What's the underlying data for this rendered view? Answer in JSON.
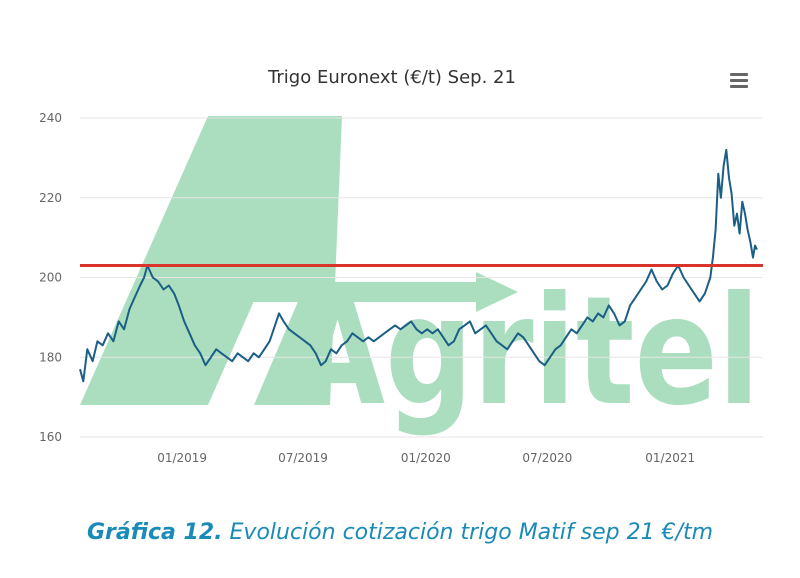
{
  "chart_data": {
    "type": "line",
    "title": "Trigo Euronext (€/t) Sep. 21",
    "x_tick_labels": [
      "01/2019",
      "07/2019",
      "01/2020",
      "07/2020",
      "01/2021"
    ],
    "x_range": [
      "2018-08-01",
      "2021-05-20"
    ],
    "ylim": [
      160,
      240
    ],
    "y_ticks": [
      160,
      180,
      200,
      220,
      240
    ],
    "grid": true,
    "reference_line": {
      "value": 203,
      "color": "#d9342b"
    },
    "series": [
      {
        "color": "#1b5e86",
        "points": [
          [
            "2018-08-01",
            177
          ],
          [
            "2018-08-06",
            174
          ],
          [
            "2018-08-12",
            182
          ],
          [
            "2018-08-20",
            179
          ],
          [
            "2018-08-27",
            184
          ],
          [
            "2018-09-04",
            183
          ],
          [
            "2018-09-12",
            186
          ],
          [
            "2018-09-20",
            184
          ],
          [
            "2018-09-28",
            189
          ],
          [
            "2018-10-06",
            187
          ],
          [
            "2018-10-14",
            192
          ],
          [
            "2018-10-22",
            195
          ],
          [
            "2018-10-30",
            198
          ],
          [
            "2018-11-05",
            200
          ],
          [
            "2018-11-10",
            203
          ],
          [
            "2018-11-18",
            200
          ],
          [
            "2018-11-26",
            199
          ],
          [
            "2018-12-04",
            197
          ],
          [
            "2018-12-12",
            198
          ],
          [
            "2018-12-20",
            196
          ],
          [
            "2018-12-27",
            193
          ],
          [
            "2019-01-04",
            189
          ],
          [
            "2019-01-12",
            186
          ],
          [
            "2019-01-20",
            183
          ],
          [
            "2019-01-28",
            181
          ],
          [
            "2019-02-05",
            178
          ],
          [
            "2019-02-13",
            180
          ],
          [
            "2019-02-21",
            182
          ],
          [
            "2019-03-01",
            181
          ],
          [
            "2019-03-09",
            180
          ],
          [
            "2019-03-17",
            179
          ],
          [
            "2019-03-25",
            181
          ],
          [
            "2019-04-02",
            180
          ],
          [
            "2019-04-10",
            179
          ],
          [
            "2019-04-18",
            181
          ],
          [
            "2019-04-26",
            180
          ],
          [
            "2019-05-04",
            182
          ],
          [
            "2019-05-12",
            184
          ],
          [
            "2019-05-20",
            188
          ],
          [
            "2019-05-26",
            191
          ],
          [
            "2019-06-02",
            189
          ],
          [
            "2019-06-10",
            187
          ],
          [
            "2019-06-18",
            186
          ],
          [
            "2019-06-26",
            185
          ],
          [
            "2019-07-04",
            184
          ],
          [
            "2019-07-12",
            183
          ],
          [
            "2019-07-20",
            181
          ],
          [
            "2019-07-28",
            178
          ],
          [
            "2019-08-04",
            179
          ],
          [
            "2019-08-12",
            182
          ],
          [
            "2019-08-20",
            181
          ],
          [
            "2019-08-28",
            183
          ],
          [
            "2019-09-05",
            184
          ],
          [
            "2019-09-13",
            186
          ],
          [
            "2019-09-21",
            185
          ],
          [
            "2019-09-29",
            184
          ],
          [
            "2019-10-07",
            185
          ],
          [
            "2019-10-15",
            184
          ],
          [
            "2019-10-23",
            185
          ],
          [
            "2019-10-31",
            186
          ],
          [
            "2019-11-08",
            187
          ],
          [
            "2019-11-16",
            188
          ],
          [
            "2019-11-24",
            187
          ],
          [
            "2019-12-02",
            188
          ],
          [
            "2019-12-10",
            189
          ],
          [
            "2019-12-18",
            187
          ],
          [
            "2019-12-26",
            186
          ],
          [
            "2020-01-03",
            187
          ],
          [
            "2020-01-11",
            186
          ],
          [
            "2020-01-19",
            187
          ],
          [
            "2020-01-27",
            185
          ],
          [
            "2020-02-04",
            183
          ],
          [
            "2020-02-12",
            184
          ],
          [
            "2020-02-20",
            187
          ],
          [
            "2020-02-28",
            188
          ],
          [
            "2020-03-07",
            189
          ],
          [
            "2020-03-15",
            186
          ],
          [
            "2020-03-23",
            187
          ],
          [
            "2020-03-31",
            188
          ],
          [
            "2020-04-08",
            186
          ],
          [
            "2020-04-16",
            184
          ],
          [
            "2020-04-24",
            183
          ],
          [
            "2020-05-02",
            182
          ],
          [
            "2020-05-10",
            184
          ],
          [
            "2020-05-18",
            186
          ],
          [
            "2020-05-26",
            185
          ],
          [
            "2020-06-03",
            183
          ],
          [
            "2020-06-11",
            181
          ],
          [
            "2020-06-19",
            179
          ],
          [
            "2020-06-27",
            178
          ],
          [
            "2020-07-05",
            180
          ],
          [
            "2020-07-13",
            182
          ],
          [
            "2020-07-21",
            183
          ],
          [
            "2020-07-29",
            185
          ],
          [
            "2020-08-06",
            187
          ],
          [
            "2020-08-14",
            186
          ],
          [
            "2020-08-22",
            188
          ],
          [
            "2020-08-30",
            190
          ],
          [
            "2020-09-07",
            189
          ],
          [
            "2020-09-15",
            191
          ],
          [
            "2020-09-23",
            190
          ],
          [
            "2020-10-01",
            193
          ],
          [
            "2020-10-09",
            191
          ],
          [
            "2020-10-17",
            188
          ],
          [
            "2020-10-25",
            189
          ],
          [
            "2020-11-02",
            193
          ],
          [
            "2020-11-10",
            195
          ],
          [
            "2020-11-18",
            197
          ],
          [
            "2020-11-26",
            199
          ],
          [
            "2020-12-04",
            202
          ],
          [
            "2020-12-12",
            199
          ],
          [
            "2020-12-20",
            197
          ],
          [
            "2020-12-28",
            198
          ],
          [
            "2021-01-05",
            201
          ],
          [
            "2021-01-13",
            203
          ],
          [
            "2021-01-21",
            200
          ],
          [
            "2021-01-29",
            198
          ],
          [
            "2021-02-06",
            196
          ],
          [
            "2021-02-14",
            194
          ],
          [
            "2021-02-22",
            196
          ],
          [
            "2021-03-02",
            200
          ],
          [
            "2021-03-06",
            205
          ],
          [
            "2021-03-10",
            212
          ],
          [
            "2021-03-14",
            226
          ],
          [
            "2021-03-18",
            220
          ],
          [
            "2021-03-22",
            228
          ],
          [
            "2021-03-26",
            232
          ],
          [
            "2021-03-30",
            225
          ],
          [
            "2021-04-03",
            221
          ],
          [
            "2021-04-07",
            213
          ],
          [
            "2021-04-11",
            216
          ],
          [
            "2021-04-15",
            211
          ],
          [
            "2021-04-19",
            219
          ],
          [
            "2021-04-23",
            216
          ],
          [
            "2021-04-27",
            212
          ],
          [
            "2021-05-01",
            209
          ],
          [
            "2021-05-05",
            205
          ],
          [
            "2021-05-08",
            208
          ],
          [
            "2021-05-11",
            207
          ]
        ]
      }
    ]
  },
  "watermark": {
    "text": "Agritel",
    "color": "#2aa85c"
  },
  "menu": {
    "icon": "hamburger-menu-icon"
  },
  "caption": {
    "lead": "Gráfica 12.",
    "text": " Evolución cotización trigo Matif sep 21 €/tm"
  }
}
